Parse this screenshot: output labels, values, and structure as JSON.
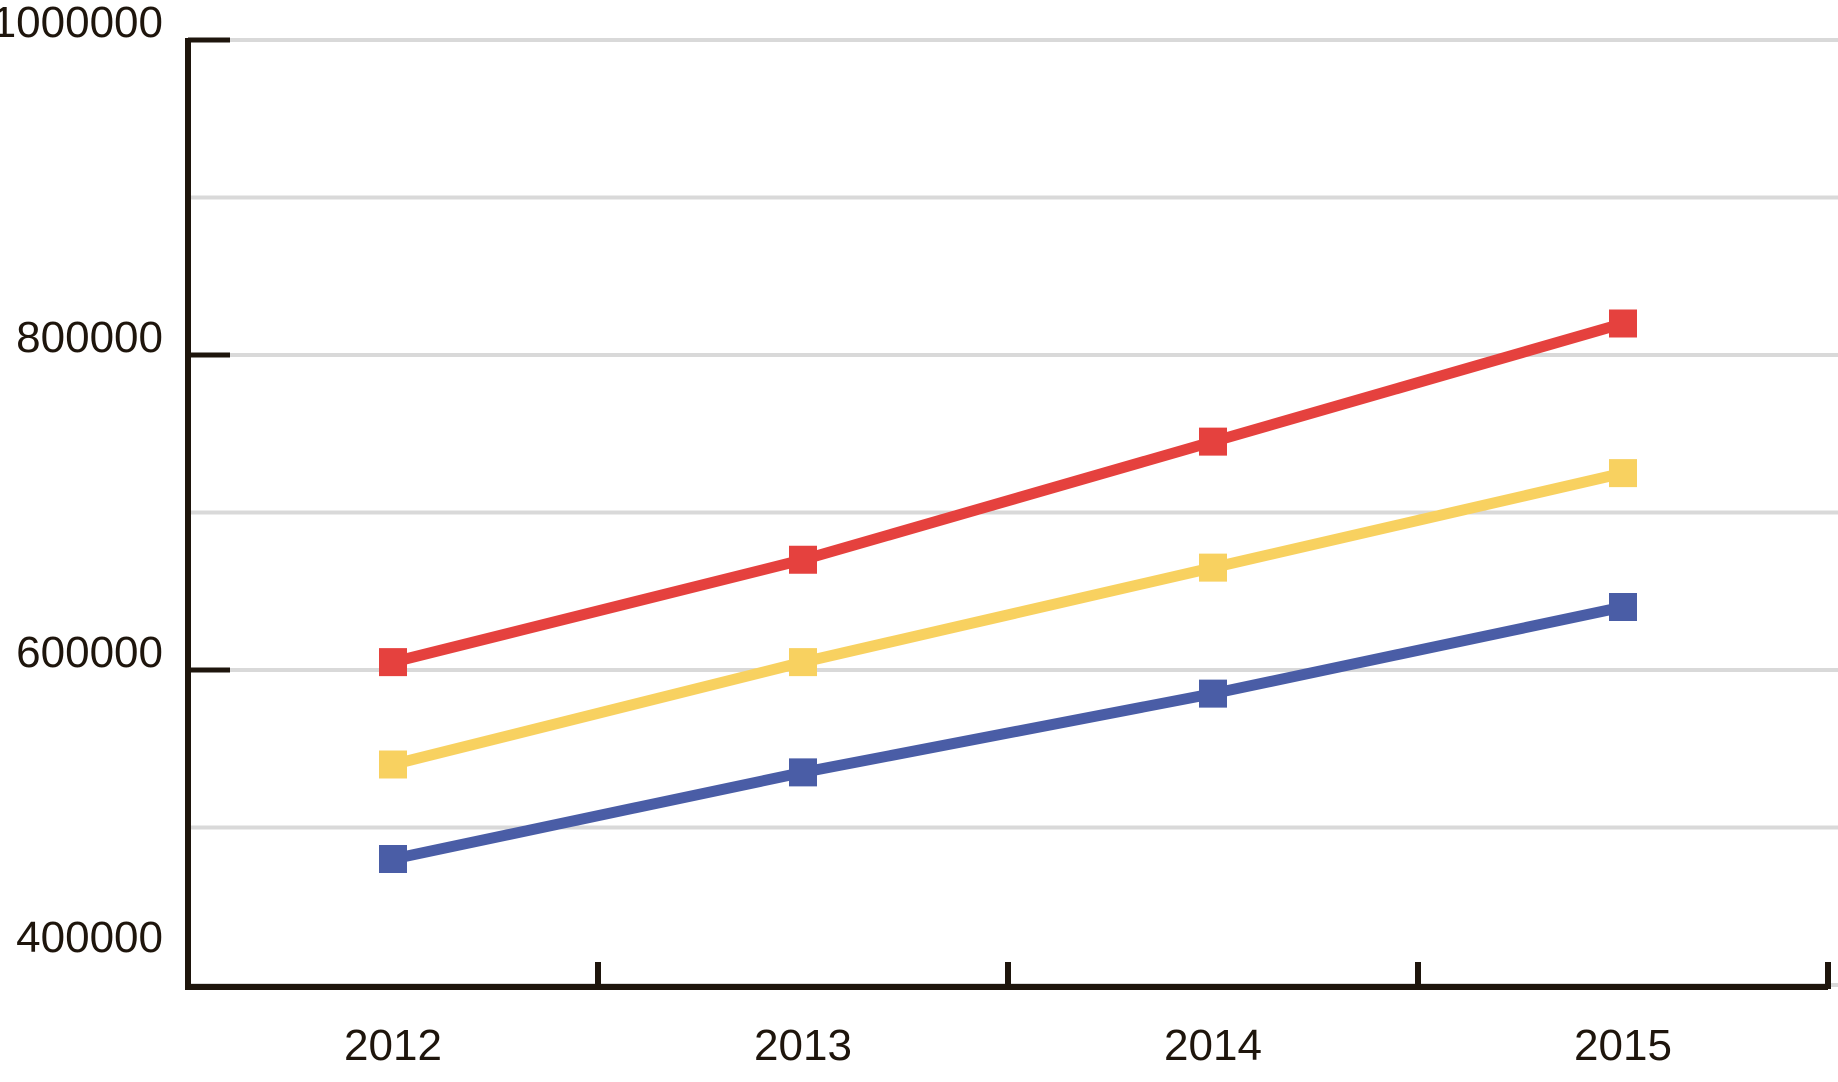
{
  "chart_data": {
    "type": "line",
    "title": "",
    "xlabel": "",
    "ylabel": "",
    "categories": [
      "2012",
      "2013",
      "2014",
      "2015"
    ],
    "series": [
      {
        "name": "red-series",
        "color": "#e5413e",
        "values": [
          605000,
          670000,
          745000,
          820000
        ]
      },
      {
        "name": "yellow-series",
        "color": "#f8d160",
        "values": [
          540000,
          605000,
          665000,
          725000
        ]
      },
      {
        "name": "blue-series",
        "color": "#4a5da6",
        "values": [
          480000,
          535000,
          585000,
          640000
        ]
      }
    ],
    "ylim": [
      400000,
      1000000
    ],
    "gridline_step": 100000,
    "grid": true,
    "legend": false,
    "marker": "square",
    "y_ticks": [
      {
        "label": "1000000",
        "value": 1000000
      },
      {
        "label": "800000",
        "value": 800000
      },
      {
        "label": "600000",
        "value": 600000
      },
      {
        "label": "400000",
        "value": 400000
      }
    ],
    "colors": {
      "axis": "#1e150c",
      "gridline": "#d9d9d9",
      "label_text": "#1e150c",
      "background": "#ffffff"
    }
  }
}
